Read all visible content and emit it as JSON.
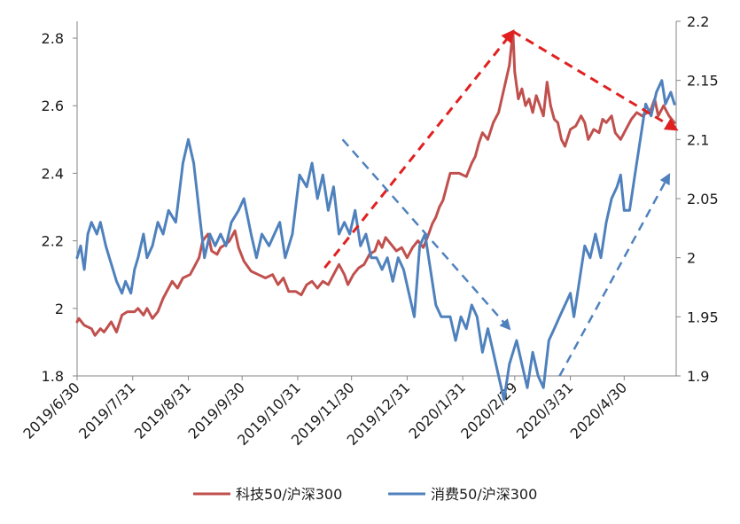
{
  "chart_data": {
    "type": "line",
    "title": "",
    "xlabel": "",
    "ylabel": "",
    "x_axis": {
      "range": [
        "2019-06-30",
        "2020-05-29"
      ],
      "tick_labels": [
        "2019/6/30",
        "2019/7/31",
        "2019/8/31",
        "2019/9/30",
        "2019/10/31",
        "2019/11/30",
        "2019/12/31",
        "2020/1/31",
        "2020/2/29",
        "2020/3/31",
        "2020/4/30"
      ]
    },
    "y_left": {
      "range": [
        1.8,
        2.85
      ],
      "tick_labels": [
        "1.8",
        "2",
        "2.2",
        "2.4",
        "2.6",
        "2.8"
      ]
    },
    "y_right": {
      "range": [
        1.9,
        2.2
      ],
      "tick_labels": [
        "1.9",
        "1.95",
        "2",
        "2.05",
        "2.1",
        "2.15",
        "2.2"
      ]
    },
    "grid": false,
    "legend_position": "bottom",
    "series": [
      {
        "name": "科技50/沪深300",
        "axis": "left",
        "color": "#c0504d",
        "points": [
          [
            "2019-06-30",
            1.96
          ],
          [
            "2019-07-01",
            1.97
          ],
          [
            "2019-07-04",
            1.95
          ],
          [
            "2019-07-08",
            1.94
          ],
          [
            "2019-07-10",
            1.92
          ],
          [
            "2019-07-13",
            1.94
          ],
          [
            "2019-07-15",
            1.93
          ],
          [
            "2019-07-19",
            1.96
          ],
          [
            "2019-07-22",
            1.93
          ],
          [
            "2019-07-25",
            1.98
          ],
          [
            "2019-07-28",
            1.99
          ],
          [
            "2019-08-01",
            1.99
          ],
          [
            "2019-08-03",
            2.0
          ],
          [
            "2019-08-06",
            1.98
          ],
          [
            "2019-08-08",
            2.0
          ],
          [
            "2019-08-11",
            1.97
          ],
          [
            "2019-08-14",
            1.99
          ],
          [
            "2019-08-17",
            2.03
          ],
          [
            "2019-08-20",
            2.06
          ],
          [
            "2019-08-22",
            2.08
          ],
          [
            "2019-08-25",
            2.06
          ],
          [
            "2019-08-28",
            2.09
          ],
          [
            "2019-09-01",
            2.1
          ],
          [
            "2019-09-03",
            2.12
          ],
          [
            "2019-09-06",
            2.15
          ],
          [
            "2019-09-08",
            2.2
          ],
          [
            "2019-09-11",
            2.22
          ],
          [
            "2019-09-13",
            2.17
          ],
          [
            "2019-09-16",
            2.16
          ],
          [
            "2019-09-18",
            2.18
          ],
          [
            "2019-09-21",
            2.19
          ],
          [
            "2019-09-23",
            2.2
          ],
          [
            "2019-09-26",
            2.23
          ],
          [
            "2019-09-28",
            2.18
          ],
          [
            "2019-10-01",
            2.14
          ],
          [
            "2019-10-05",
            2.11
          ],
          [
            "2019-10-09",
            2.1
          ],
          [
            "2019-10-13",
            2.09
          ],
          [
            "2019-10-17",
            2.1
          ],
          [
            "2019-10-20",
            2.07
          ],
          [
            "2019-10-23",
            2.09
          ],
          [
            "2019-10-26",
            2.05
          ],
          [
            "2019-10-30",
            2.05
          ],
          [
            "2019-11-02",
            2.04
          ],
          [
            "2019-11-05",
            2.07
          ],
          [
            "2019-11-08",
            2.08
          ],
          [
            "2019-11-11",
            2.06
          ],
          [
            "2019-11-14",
            2.08
          ],
          [
            "2019-11-17",
            2.07
          ],
          [
            "2019-11-20",
            2.1
          ],
          [
            "2019-11-23",
            2.13
          ],
          [
            "2019-11-26",
            2.1
          ],
          [
            "2019-11-28",
            2.07
          ],
          [
            "2019-12-01",
            2.1
          ],
          [
            "2019-12-04",
            2.12
          ],
          [
            "2019-12-07",
            2.13
          ],
          [
            "2019-12-10",
            2.16
          ],
          [
            "2019-12-13",
            2.17
          ],
          [
            "2019-12-15",
            2.2
          ],
          [
            "2019-12-17",
            2.18
          ],
          [
            "2019-12-19",
            2.21
          ],
          [
            "2019-12-22",
            2.19
          ],
          [
            "2019-12-25",
            2.17
          ],
          [
            "2019-12-28",
            2.18
          ],
          [
            "2019-12-31",
            2.15
          ],
          [
            "2020-01-03",
            2.18
          ],
          [
            "2020-01-06",
            2.2
          ],
          [
            "2020-01-09",
            2.18
          ],
          [
            "2020-01-12",
            2.22
          ],
          [
            "2020-01-14",
            2.25
          ],
          [
            "2020-01-16",
            2.27
          ],
          [
            "2020-01-18",
            2.3
          ],
          [
            "2020-01-20",
            2.32
          ],
          [
            "2020-01-22",
            2.36
          ],
          [
            "2020-01-24",
            2.4
          ],
          [
            "2020-01-29",
            2.4
          ],
          [
            "2020-02-02",
            2.39
          ],
          [
            "2020-02-05",
            2.43
          ],
          [
            "2020-02-07",
            2.45
          ],
          [
            "2020-02-09",
            2.49
          ],
          [
            "2020-02-11",
            2.52
          ],
          [
            "2020-02-14",
            2.5
          ],
          [
            "2020-02-17",
            2.55
          ],
          [
            "2020-02-20",
            2.58
          ],
          [
            "2020-02-23",
            2.65
          ],
          [
            "2020-02-26",
            2.72
          ],
          [
            "2020-02-28",
            2.82
          ],
          [
            "2020-02-29",
            2.7
          ],
          [
            "2020-03-02",
            2.62
          ],
          [
            "2020-03-04",
            2.65
          ],
          [
            "2020-03-06",
            2.6
          ],
          [
            "2020-03-08",
            2.62
          ],
          [
            "2020-03-10",
            2.58
          ],
          [
            "2020-03-12",
            2.63
          ],
          [
            "2020-03-14",
            2.6
          ],
          [
            "2020-03-16",
            2.57
          ],
          [
            "2020-03-18",
            2.67
          ],
          [
            "2020-03-20",
            2.6
          ],
          [
            "2020-03-22",
            2.56
          ],
          [
            "2020-03-24",
            2.55
          ],
          [
            "2020-03-26",
            2.5
          ],
          [
            "2020-03-28",
            2.48
          ],
          [
            "2020-03-31",
            2.53
          ],
          [
            "2020-04-03",
            2.54
          ],
          [
            "2020-04-06",
            2.57
          ],
          [
            "2020-04-08",
            2.55
          ],
          [
            "2020-04-10",
            2.5
          ],
          [
            "2020-04-13",
            2.53
          ],
          [
            "2020-04-16",
            2.52
          ],
          [
            "2020-04-18",
            2.56
          ],
          [
            "2020-04-20",
            2.55
          ],
          [
            "2020-04-23",
            2.57
          ],
          [
            "2020-04-25",
            2.52
          ],
          [
            "2020-04-28",
            2.5
          ],
          [
            "2020-05-01",
            2.53
          ],
          [
            "2020-05-04",
            2.56
          ],
          [
            "2020-05-07",
            2.58
          ],
          [
            "2020-05-10",
            2.57
          ],
          [
            "2020-05-13",
            2.58
          ],
          [
            "2020-05-15",
            2.59
          ],
          [
            "2020-05-17",
            2.62
          ],
          [
            "2020-05-19",
            2.57
          ],
          [
            "2020-05-22",
            2.6
          ],
          [
            "2020-05-25",
            2.57
          ],
          [
            "2020-05-28",
            2.55
          ]
        ]
      },
      {
        "name": "消费50/沪深300",
        "axis": "right",
        "color": "#4f81bd",
        "points": [
          [
            "2019-06-30",
            2.0
          ],
          [
            "2019-07-02",
            2.01
          ],
          [
            "2019-07-04",
            1.99
          ],
          [
            "2019-07-06",
            2.02
          ],
          [
            "2019-07-08",
            2.03
          ],
          [
            "2019-07-11",
            2.02
          ],
          [
            "2019-07-13",
            2.03
          ],
          [
            "2019-07-16",
            2.01
          ],
          [
            "2019-07-18",
            2.0
          ],
          [
            "2019-07-20",
            1.99
          ],
          [
            "2019-07-22",
            1.98
          ],
          [
            "2019-07-25",
            1.97
          ],
          [
            "2019-07-27",
            1.98
          ],
          [
            "2019-07-30",
            1.97
          ],
          [
            "2019-08-01",
            1.99
          ],
          [
            "2019-08-03",
            2.0
          ],
          [
            "2019-08-06",
            2.02
          ],
          [
            "2019-08-08",
            2.0
          ],
          [
            "2019-08-11",
            2.01
          ],
          [
            "2019-08-14",
            2.03
          ],
          [
            "2019-08-17",
            2.02
          ],
          [
            "2019-08-20",
            2.04
          ],
          [
            "2019-08-24",
            2.03
          ],
          [
            "2019-08-28",
            2.08
          ],
          [
            "2019-08-31",
            2.1
          ],
          [
            "2019-09-03",
            2.08
          ],
          [
            "2019-09-06",
            2.04
          ],
          [
            "2019-09-09",
            2.0
          ],
          [
            "2019-09-12",
            2.02
          ],
          [
            "2019-09-15",
            2.01
          ],
          [
            "2019-09-18",
            2.02
          ],
          [
            "2019-09-21",
            2.01
          ],
          [
            "2019-09-24",
            2.03
          ],
          [
            "2019-09-28",
            2.04
          ],
          [
            "2019-10-01",
            2.05
          ],
          [
            "2019-10-05",
            2.02
          ],
          [
            "2019-10-08",
            2.0
          ],
          [
            "2019-10-11",
            2.02
          ],
          [
            "2019-10-15",
            2.01
          ],
          [
            "2019-10-18",
            2.02
          ],
          [
            "2019-10-21",
            2.03
          ],
          [
            "2019-10-24",
            2.0
          ],
          [
            "2019-10-28",
            2.02
          ],
          [
            "2019-11-01",
            2.07
          ],
          [
            "2019-11-05",
            2.06
          ],
          [
            "2019-11-08",
            2.08
          ],
          [
            "2019-11-11",
            2.05
          ],
          [
            "2019-11-14",
            2.07
          ],
          [
            "2019-11-17",
            2.04
          ],
          [
            "2019-11-20",
            2.06
          ],
          [
            "2019-11-23",
            2.02
          ],
          [
            "2019-11-26",
            2.03
          ],
          [
            "2019-11-29",
            2.02
          ],
          [
            "2019-12-02",
            2.04
          ],
          [
            "2019-12-05",
            2.01
          ],
          [
            "2019-12-08",
            2.02
          ],
          [
            "2019-12-11",
            2.0
          ],
          [
            "2019-12-14",
            2.0
          ],
          [
            "2019-12-17",
            1.99
          ],
          [
            "2019-12-20",
            2.0
          ],
          [
            "2019-12-23",
            1.98
          ],
          [
            "2019-12-26",
            2.0
          ],
          [
            "2019-12-29",
            1.99
          ],
          [
            "2020-01-01",
            1.97
          ],
          [
            "2020-01-04",
            1.95
          ],
          [
            "2020-01-07",
            2.01
          ],
          [
            "2020-01-10",
            2.02
          ],
          [
            "2020-01-13",
            1.99
          ],
          [
            "2020-01-16",
            1.96
          ],
          [
            "2020-01-19",
            1.95
          ],
          [
            "2020-01-24",
            1.95
          ],
          [
            "2020-01-27",
            1.93
          ],
          [
            "2020-01-30",
            1.95
          ],
          [
            "2020-02-02",
            1.94
          ],
          [
            "2020-02-05",
            1.96
          ],
          [
            "2020-02-08",
            1.95
          ],
          [
            "2020-02-11",
            1.92
          ],
          [
            "2020-02-14",
            1.94
          ],
          [
            "2020-02-17",
            1.92
          ],
          [
            "2020-02-20",
            1.9
          ],
          [
            "2020-02-23",
            1.88
          ],
          [
            "2020-02-26",
            1.91
          ],
          [
            "2020-03-01",
            1.93
          ],
          [
            "2020-03-04",
            1.91
          ],
          [
            "2020-03-07",
            1.89
          ],
          [
            "2020-03-10",
            1.92
          ],
          [
            "2020-03-13",
            1.9
          ],
          [
            "2020-03-16",
            1.89
          ],
          [
            "2020-03-19",
            1.93
          ],
          [
            "2020-03-22",
            1.94
          ],
          [
            "2020-03-25",
            1.95
          ],
          [
            "2020-03-28",
            1.96
          ],
          [
            "2020-03-31",
            1.97
          ],
          [
            "2020-04-02",
            1.95
          ],
          [
            "2020-04-05",
            1.98
          ],
          [
            "2020-04-08",
            2.01
          ],
          [
            "2020-04-11",
            2.0
          ],
          [
            "2020-04-14",
            2.02
          ],
          [
            "2020-04-17",
            2.0
          ],
          [
            "2020-04-20",
            2.03
          ],
          [
            "2020-04-23",
            2.05
          ],
          [
            "2020-04-26",
            2.06
          ],
          [
            "2020-04-28",
            2.07
          ],
          [
            "2020-04-30",
            2.04
          ],
          [
            "2020-05-03",
            2.04
          ],
          [
            "2020-05-06",
            2.07
          ],
          [
            "2020-05-09",
            2.1
          ],
          [
            "2020-05-12",
            2.13
          ],
          [
            "2020-05-15",
            2.12
          ],
          [
            "2020-05-18",
            2.14
          ],
          [
            "2020-05-21",
            2.15
          ],
          [
            "2020-05-23",
            2.13
          ],
          [
            "2020-05-26",
            2.14
          ],
          [
            "2020-05-28",
            2.13
          ]
        ]
      }
    ],
    "annotations": [
      {
        "style": "dashed-arrow",
        "color": "#e02020",
        "from": [
          "2019-11-15",
          2.12
        ],
        "to": [
          "2020-02-28",
          2.82
        ],
        "axis": "left"
      },
      {
        "style": "dashed-arrow",
        "color": "#e02020",
        "from": [
          "2020-02-28",
          2.82
        ],
        "to": [
          "2020-05-29",
          2.53
        ],
        "axis": "left"
      },
      {
        "style": "dashed-arrow",
        "color": "#4f81bd",
        "from": [
          "2019-11-25",
          2.1
        ],
        "to": [
          "2020-02-26",
          1.94
        ],
        "axis": "right"
      },
      {
        "style": "dashed-arrow",
        "color": "#4f81bd",
        "from": [
          "2020-03-25",
          1.9
        ],
        "to": [
          "2020-05-25",
          2.07
        ],
        "axis": "right"
      }
    ]
  }
}
